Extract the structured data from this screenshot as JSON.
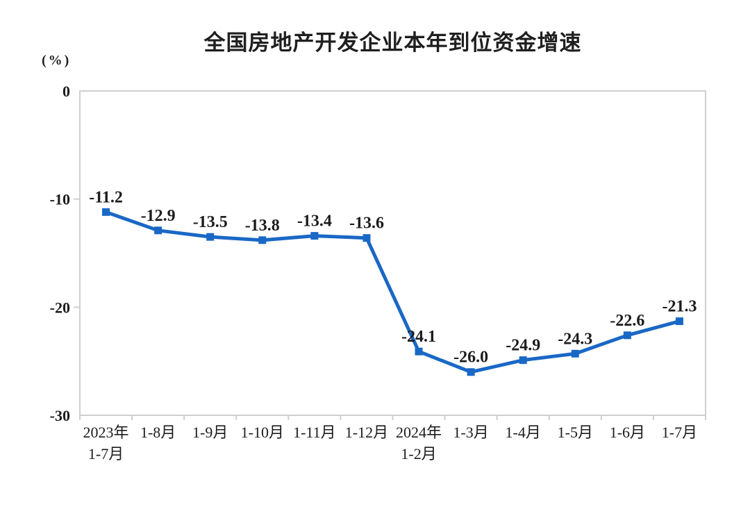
{
  "chart_data": {
    "type": "line",
    "title": "全国房地产开发企业本年到位资金增速",
    "unit_label": "(%)",
    "categories": [
      [
        "2023年",
        "1-7月"
      ],
      [
        "1-8月"
      ],
      [
        "1-9月"
      ],
      [
        "1-10月"
      ],
      [
        "1-11月"
      ],
      [
        "1-12月"
      ],
      [
        "2024年",
        "1-2月"
      ],
      [
        "1-3月"
      ],
      [
        "1-4月"
      ],
      [
        "1-5月"
      ],
      [
        "1-6月"
      ],
      [
        "1-7月"
      ]
    ],
    "values": [
      -11.2,
      -12.9,
      -13.5,
      -13.8,
      -13.4,
      -13.6,
      -24.1,
      -26.0,
      -24.9,
      -24.3,
      -22.6,
      -21.3
    ],
    "data_labels": [
      "-11.2",
      "-12.9",
      "-13.5",
      "-13.8",
      "-13.4",
      "-13.6",
      "-24.1",
      "-26.0",
      "-24.9",
      "-24.3",
      "-22.6",
      "-21.3"
    ],
    "y_ticks": [
      0,
      -10,
      -20,
      -30
    ],
    "ylim": [
      -30,
      0
    ],
    "xlabel": "",
    "ylabel": "(%)",
    "grid": false,
    "legend": false,
    "colors": {
      "line": "#1a68c5",
      "marker": "#1a68c5",
      "axis_border": "#cfcfcf",
      "text": "#1c1c1c"
    }
  }
}
